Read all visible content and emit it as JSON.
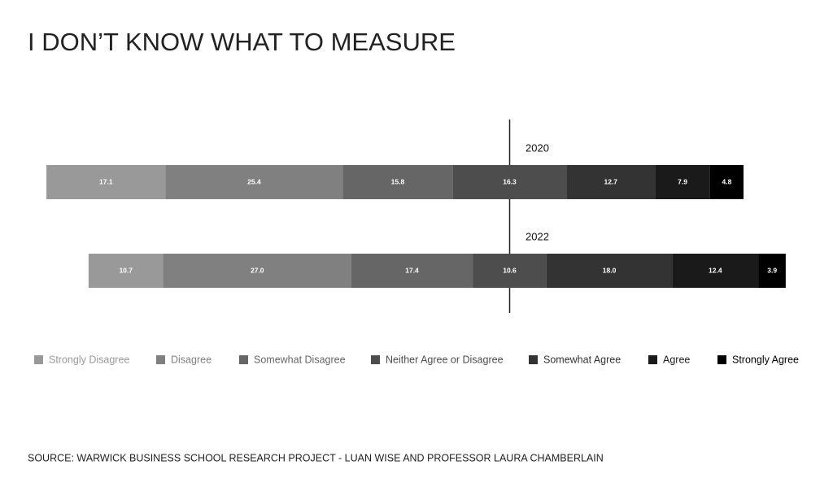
{
  "chart_data": {
    "type": "diverging_bar",
    "title": "I DON’T KNOW WHAT TO MEASURE",
    "source": "SOURCE: WARWICK BUSINESS SCHOOL RESEARCH PROJECT - LUAN WISE AND PROFESSOR LAURA CHAMBERLAIN",
    "categories": [
      "2020",
      "2022"
    ],
    "series": [
      {
        "name": "Strongly Disagree",
        "color": "#999999",
        "values": [
          17.1,
          10.7
        ]
      },
      {
        "name": "Disagree",
        "color": "#808080",
        "values": [
          25.4,
          27.0
        ],
        "value_labels": [
          "25.4",
          "27.0"
        ]
      },
      {
        "name": "Somewhat Disagree",
        "color": "#666666",
        "values": [
          15.8,
          17.4
        ]
      },
      {
        "name": "Neither Agree or Disagree",
        "color": "#4d4d4d",
        "values": [
          16.3,
          10.6
        ]
      },
      {
        "name": "Somewhat Agree",
        "color": "#333333",
        "values": [
          12.7,
          18.0
        ],
        "value_labels": [
          "12.7",
          "18.0"
        ]
      },
      {
        "name": "Agree",
        "color": "#1a1a1a",
        "values": [
          7.9,
          12.4
        ]
      },
      {
        "name": "Strongly Agree",
        "color": "#000000",
        "values": [
          4.8,
          3.9
        ]
      }
    ]
  }
}
